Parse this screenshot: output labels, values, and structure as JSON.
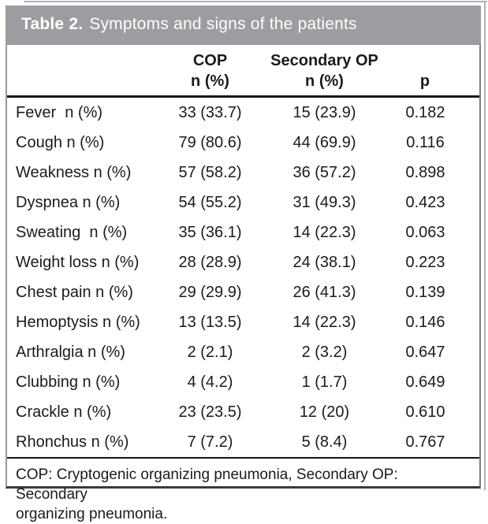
{
  "title": {
    "label": "Table 2.",
    "text": "Symptoms and signs of the patients"
  },
  "table": {
    "columns": [
      {
        "line1": "",
        "line2": ""
      },
      {
        "line1": "COP",
        "line2": "n (%)"
      },
      {
        "line1": "Secondary OP",
        "line2": "n (%)"
      },
      {
        "line1": "",
        "line2": "p"
      }
    ],
    "rows": [
      {
        "symptom": "Fever  n (%)",
        "cop": "33 (33.7)",
        "sop": "15 (23.9)",
        "p": "0.182"
      },
      {
        "symptom": "Cough n (%)",
        "cop": "79 (80.6)",
        "sop": "44 (69.9)",
        "p": "0.116"
      },
      {
        "symptom": "Weakness n (%)",
        "cop": "57 (58.2)",
        "sop": "36 (57.2)",
        "p": "0.898"
      },
      {
        "symptom": "Dyspnea n (%)",
        "cop": "54 (55.2)",
        "sop": "31 (49.3)",
        "p": "0.423"
      },
      {
        "symptom": "Sweating  n (%)",
        "cop": "35 (36.1)",
        "sop": "14 (22.3)",
        "p": "0.063"
      },
      {
        "symptom": "Weight loss n (%)",
        "cop": "28 (28.9)",
        "sop": "24 (38.1)",
        "p": "0.223"
      },
      {
        "symptom": "Chest pain n (%)",
        "cop": "29 (29.9)",
        "sop": "26 (41.3)",
        "p": "0.139"
      },
      {
        "symptom": "Hemoptysis n (%)",
        "cop": "13 (13.5)",
        "sop": "14 (22.3)",
        "p": "0.146"
      },
      {
        "symptom": "Arthralgia n (%)",
        "cop": "2 (2.1)",
        "sop": "2 (3.2)",
        "p": "0.647"
      },
      {
        "symptom": "Clubbing n (%)",
        "cop": "4 (4.2)",
        "sop": "1 (1.7)",
        "p": "0.649"
      },
      {
        "symptom": "Crackle n (%)",
        "cop": "23 (23.5)",
        "sop": "12 (20)",
        "p": "0.610"
      },
      {
        "symptom": "Rhonchus n (%)",
        "cop": "7 (7.2)",
        "sop": "5 (8.4)",
        "p": "0.767"
      }
    ]
  },
  "footnote": {
    "line1": "COP: Cryptogenic organizing pneumonia, Secondary OP: Secondary",
    "line2": "organizing pneumonia."
  },
  "colors": {
    "title_bar": "#9b9da0",
    "title_text": "#ffffff",
    "body_text": "#1b1b1b",
    "rule": "#161616",
    "box_border": "#97999c"
  }
}
